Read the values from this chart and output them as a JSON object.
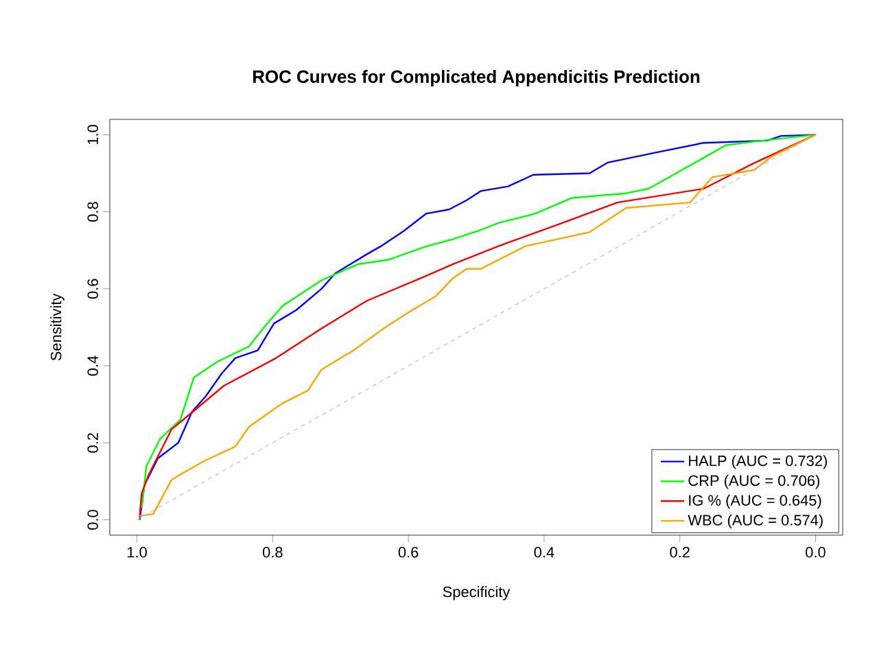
{
  "chart_data": {
    "type": "line",
    "title": "ROC Curves for Complicated Appendicitis Prediction",
    "xlabel": "Specificity",
    "ylabel": "Sensitivity",
    "xlim": [
      1.04,
      -0.04
    ],
    "ylim": [
      -0.04,
      1.04
    ],
    "xticks": [
      {
        "value": 1.0,
        "label": "1.0"
      },
      {
        "value": 0.8,
        "label": "0.8"
      },
      {
        "value": 0.6,
        "label": "0.6"
      },
      {
        "value": 0.4,
        "label": "0.4"
      },
      {
        "value": 0.2,
        "label": "0.2"
      },
      {
        "value": 0.0,
        "label": "0.0"
      }
    ],
    "yticks": [
      {
        "value": 0.0,
        "label": "0.0"
      },
      {
        "value": 0.2,
        "label": "0.2"
      },
      {
        "value": 0.4,
        "label": "0.4"
      },
      {
        "value": 0.6,
        "label": "0.6"
      },
      {
        "value": 0.8,
        "label": "0.8"
      },
      {
        "value": 1.0,
        "label": "1.0"
      }
    ],
    "grid": false,
    "legend": "bottom right",
    "marker": "none",
    "series": [
      {
        "name": "HALP (AUC = 0.732)",
        "color": "#0000ff",
        "x": [
          0.996,
          0.989,
          0.969,
          0.939,
          0.919,
          0.899,
          0.875,
          0.855,
          0.822,
          0.798,
          0.765,
          0.728,
          0.708,
          0.661,
          0.641,
          0.607,
          0.574,
          0.54,
          0.514,
          0.493,
          0.453,
          0.416,
          0.333,
          0.306,
          0.232,
          0.165,
          0.071,
          0.051,
          0.0
        ],
        "values": [
          0.0,
          0.09,
          0.16,
          0.2,
          0.28,
          0.32,
          0.38,
          0.42,
          0.44,
          0.51,
          0.545,
          0.6,
          0.64,
          0.69,
          0.71,
          0.75,
          0.795,
          0.806,
          0.83,
          0.854,
          0.866,
          0.896,
          0.9,
          0.928,
          0.955,
          0.979,
          0.985,
          0.997,
          1.0
        ]
      },
      {
        "name": "CRP (AUC = 0.706)",
        "color": "#00ff00",
        "x": [
          0.993,
          0.986,
          0.966,
          0.936,
          0.916,
          0.882,
          0.835,
          0.808,
          0.785,
          0.728,
          0.674,
          0.628,
          0.574,
          0.534,
          0.493,
          0.467,
          0.413,
          0.359,
          0.279,
          0.246,
          0.165,
          0.132,
          0.078,
          0.0
        ],
        "values": [
          0.03,
          0.14,
          0.21,
          0.26,
          0.37,
          0.41,
          0.45,
          0.51,
          0.556,
          0.622,
          0.664,
          0.676,
          0.71,
          0.729,
          0.753,
          0.771,
          0.795,
          0.836,
          0.848,
          0.86,
          0.94,
          0.973,
          0.985,
          1.0
        ]
      },
      {
        "name": "IG % (AUC = 0.645)",
        "color": "#ff0000",
        "x": [
          0.996,
          0.993,
          0.983,
          0.949,
          0.916,
          0.872,
          0.795,
          0.728,
          0.661,
          0.581,
          0.534,
          0.467,
          0.373,
          0.292,
          0.165,
          0.091,
          0.0
        ],
        "values": [
          0.01,
          0.069,
          0.116,
          0.235,
          0.283,
          0.348,
          0.42,
          0.497,
          0.569,
          0.628,
          0.664,
          0.711,
          0.771,
          0.824,
          0.86,
          0.926,
          1.0
        ]
      },
      {
        "name": "WBC (AUC = 0.574)",
        "color": "#ffa500",
        "x": [
          0.996,
          0.976,
          0.949,
          0.902,
          0.855,
          0.835,
          0.788,
          0.748,
          0.728,
          0.681,
          0.634,
          0.594,
          0.56,
          0.534,
          0.514,
          0.493,
          0.427,
          0.333,
          0.279,
          0.185,
          0.152,
          0.091,
          0.065,
          0.0
        ],
        "values": [
          0.01,
          0.015,
          0.104,
          0.152,
          0.19,
          0.241,
          0.3,
          0.336,
          0.39,
          0.44,
          0.5,
          0.545,
          0.58,
          0.628,
          0.652,
          0.652,
          0.711,
          0.747,
          0.81,
          0.824,
          0.89,
          0.908,
          0.943,
          1.0
        ]
      },
      {
        "color": "#bebebe",
        "line_style": "dashed",
        "x": [
          1.0,
          0.0
        ],
        "values": [
          0.0,
          1.0
        ]
      }
    ]
  }
}
